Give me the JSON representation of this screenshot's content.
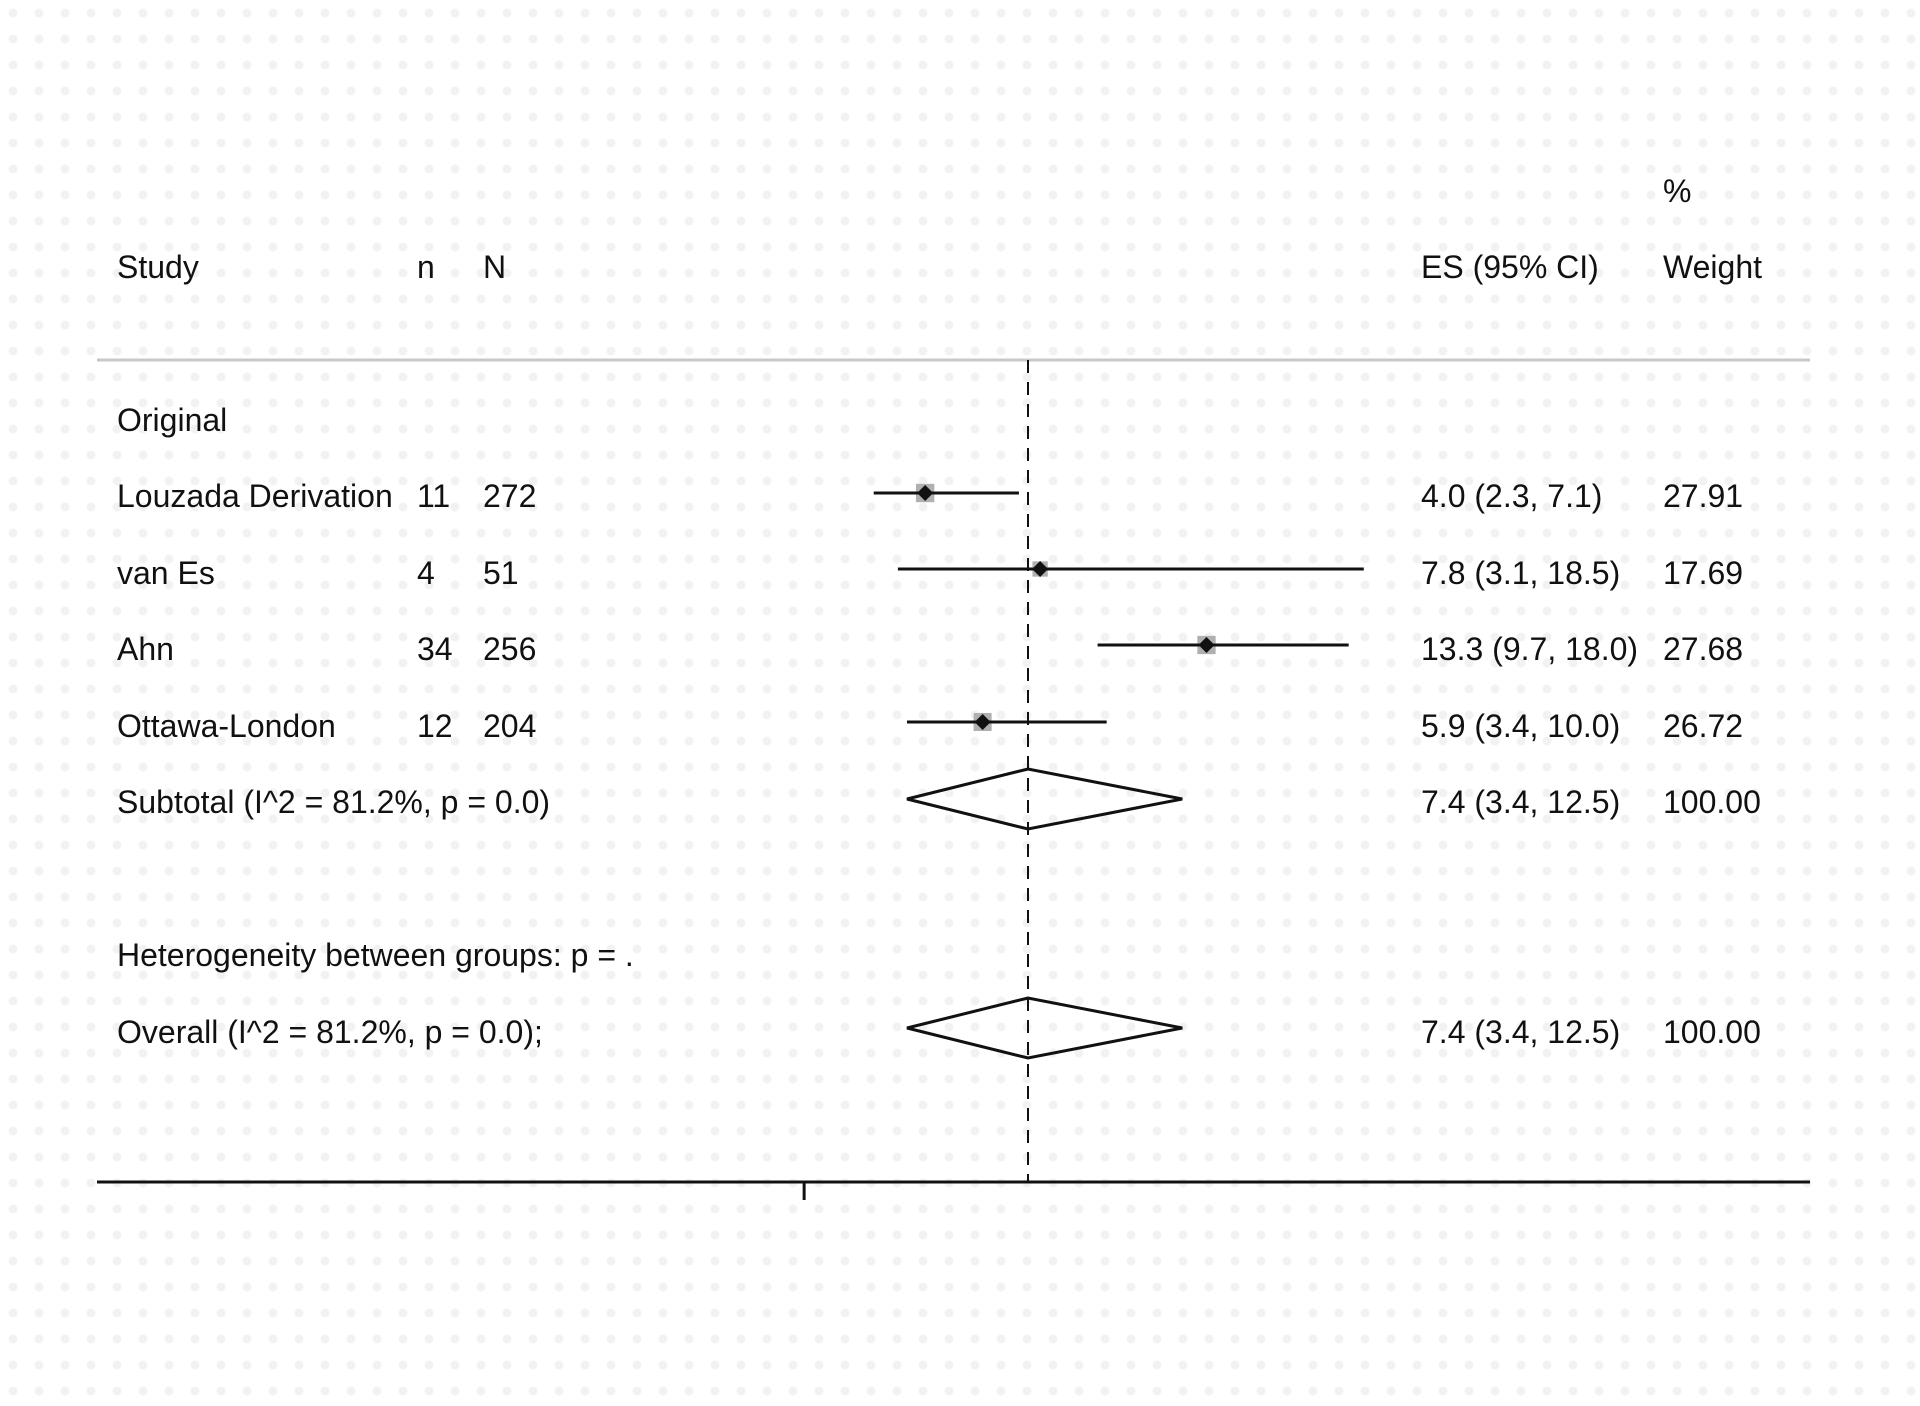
{
  "chart_data": {
    "type": "forest",
    "title": "",
    "headers": {
      "study": "Study",
      "n": "n",
      "N": "N",
      "es": "ES (95% CI)",
      "weight_pct": "%",
      "weight": "Weight"
    },
    "group_label": "Original",
    "studies": [
      {
        "name": "Louzada Derivation",
        "n": "11",
        "N": "272",
        "es": 4.0,
        "lo": 2.3,
        "hi": 7.1,
        "es_text": "4.0 (2.3, 7.1)",
        "weight": 27.91,
        "weight_text": "27.91"
      },
      {
        "name": "van Es",
        "n": "4",
        "N": "51",
        "es": 7.8,
        "lo": 3.1,
        "hi": 18.5,
        "es_text": "7.8 (3.1, 18.5)",
        "weight": 17.69,
        "weight_text": "17.69"
      },
      {
        "name": "Ahn",
        "n": "34",
        "N": "256",
        "es": 13.3,
        "lo": 9.7,
        "hi": 18.0,
        "es_text": "13.3 (9.7, 18.0)",
        "weight": 27.68,
        "weight_text": "27.68"
      },
      {
        "name": "Ottawa-London",
        "n": "12",
        "N": "204",
        "es": 5.9,
        "lo": 3.4,
        "hi": 10.0,
        "es_text": "5.9 (3.4, 10.0)",
        "weight": 26.72,
        "weight_text": "26.72"
      }
    ],
    "subtotal": {
      "label": "Subtotal  (I^2 = 81.2%, p = 0.0)",
      "es": 7.4,
      "lo": 3.4,
      "hi": 12.5,
      "es_text": "7.4 (3.4, 12.5)",
      "weight_text": "100.00"
    },
    "heterogeneity_label": "Heterogeneity between groups: p = .",
    "overall": {
      "label": "Overall  (I^2 = 81.2%, p = 0.0);",
      "es": 7.4,
      "lo": 3.4,
      "hi": 12.5,
      "es_text": "7.4 (3.4, 12.5)",
      "weight_text": "100.00"
    },
    "reference_line": 7.4,
    "x_axis_tick": 0,
    "xlim": [
      -4.5,
      19.3
    ],
    "colors": {
      "line": "#111111",
      "box": "#b0b0b0",
      "rule": "#c8c8c8"
    }
  }
}
